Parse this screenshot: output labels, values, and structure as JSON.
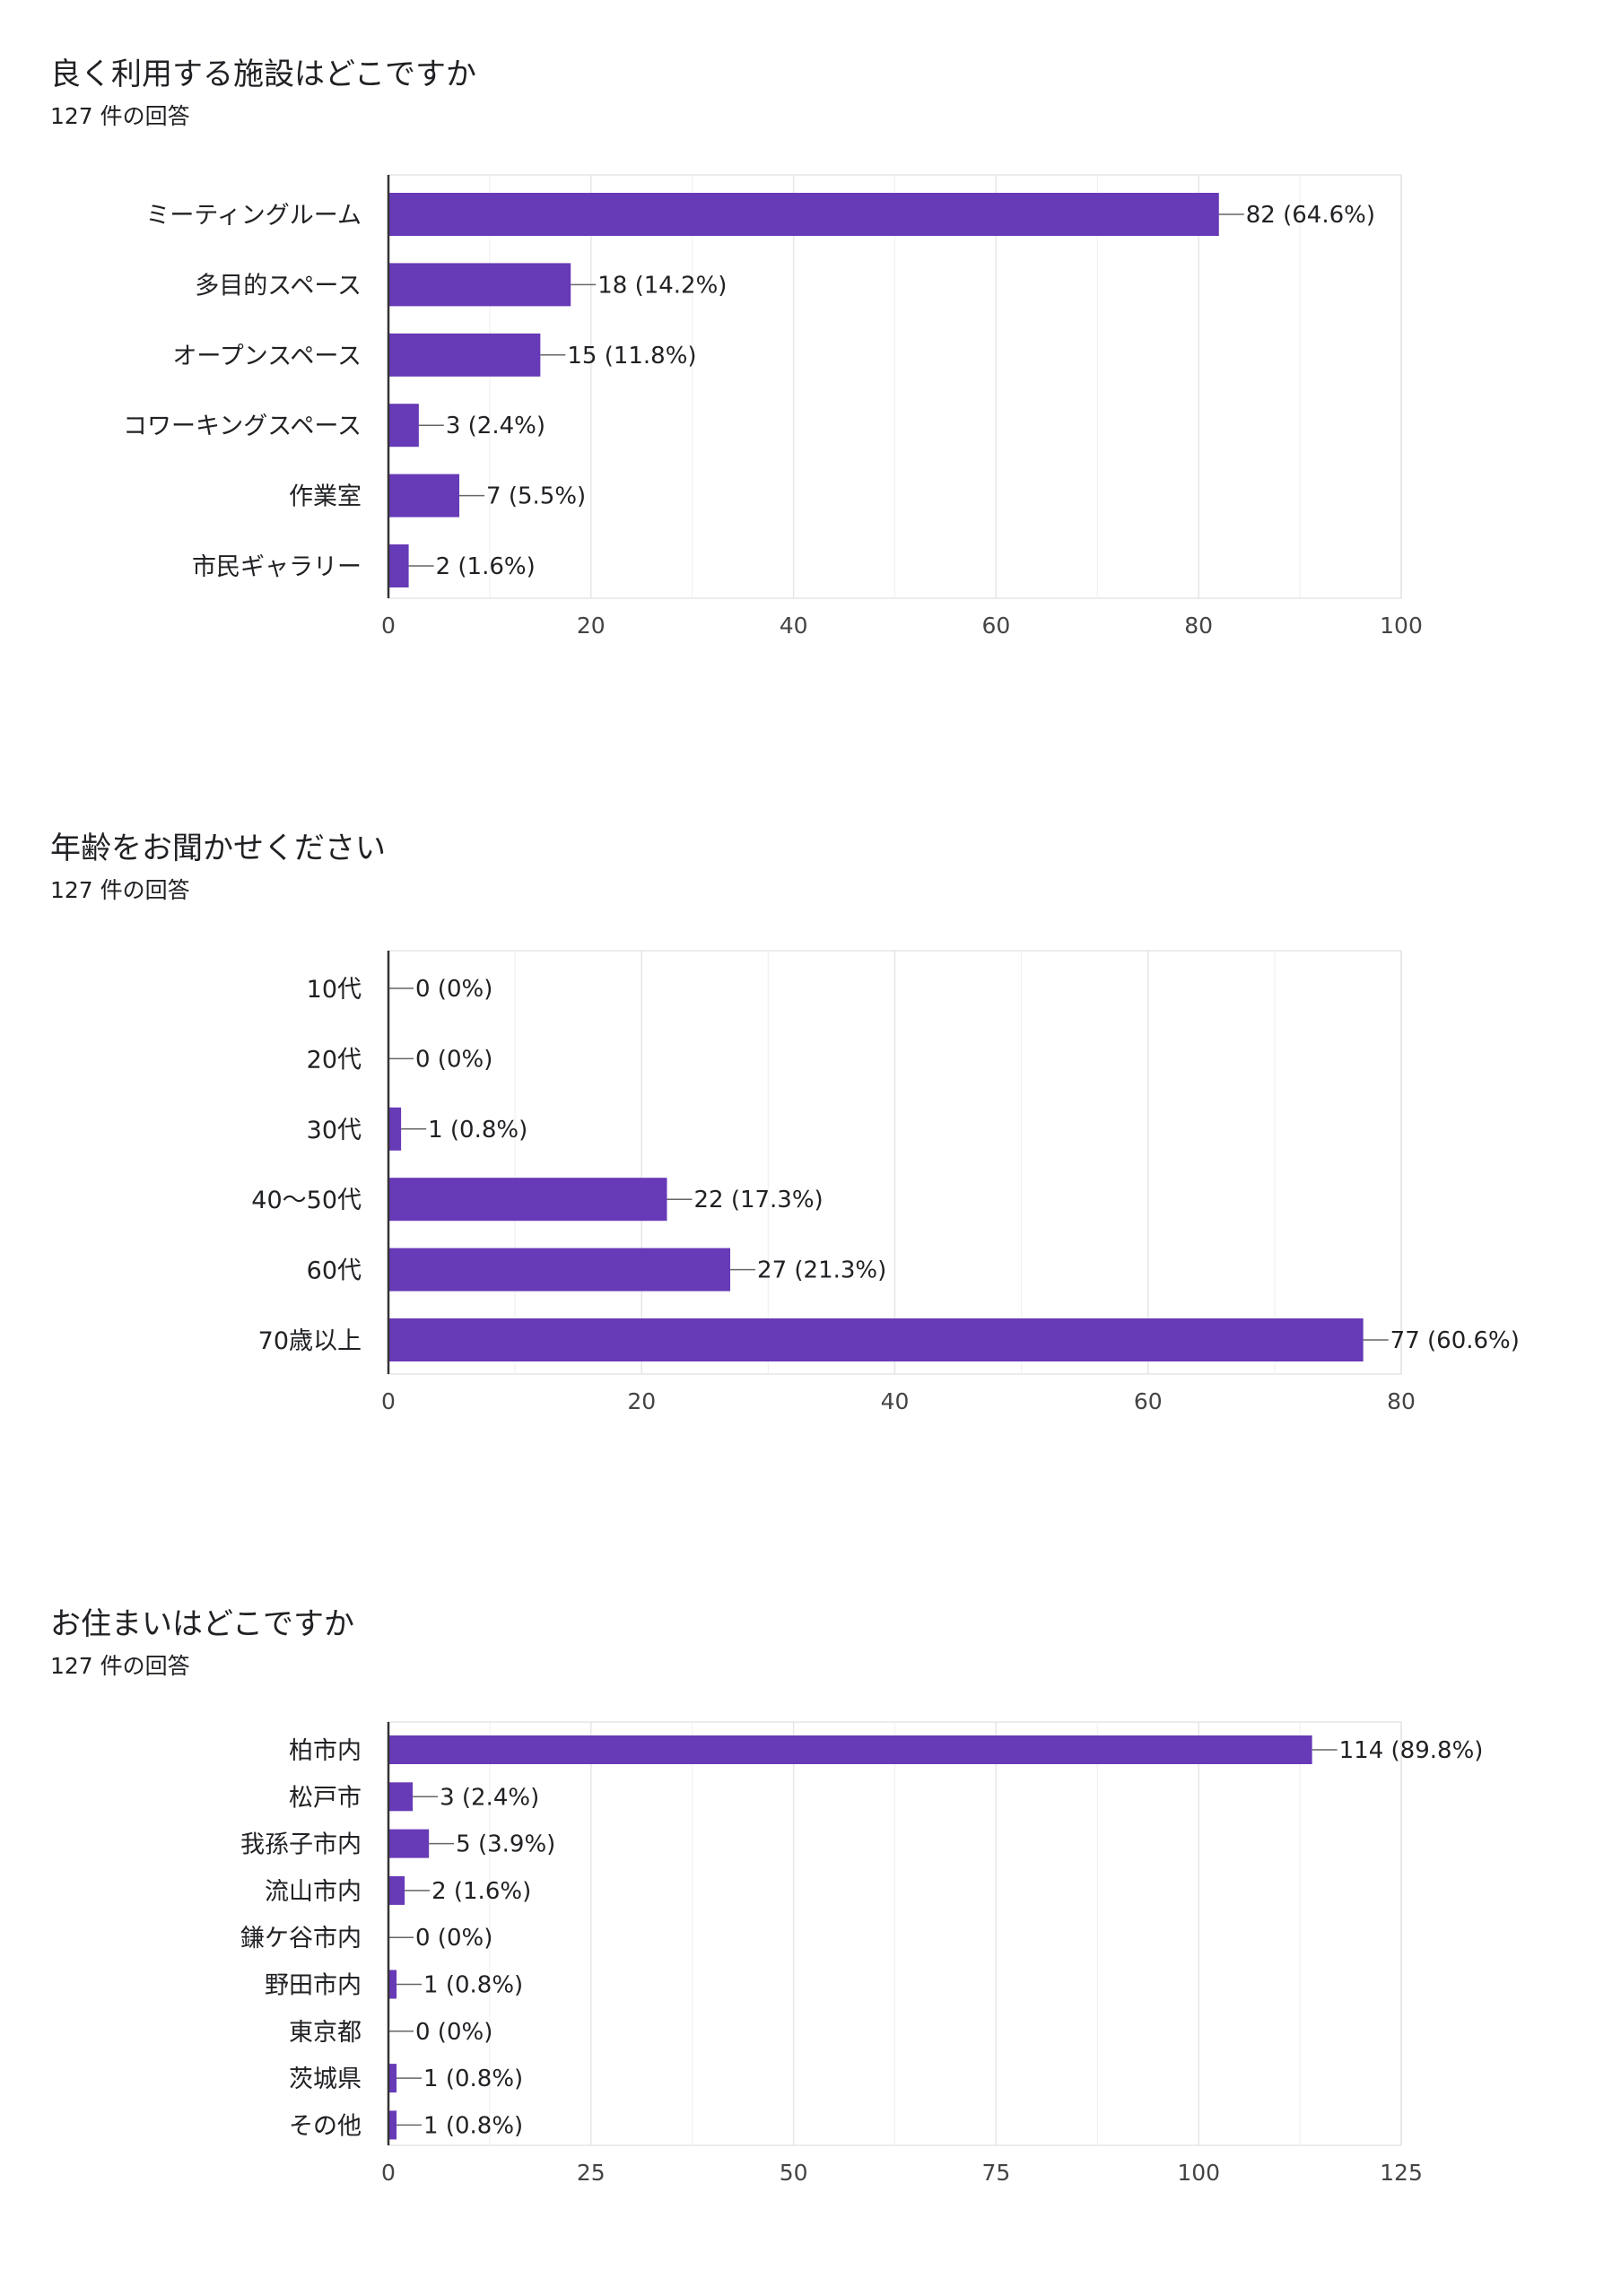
{
  "theme": {
    "bar_color": "#673ab7",
    "grid_color": "#e6e6e6",
    "axis_color": "#333333"
  },
  "charts": [
    {
      "title": "良く利用する施設はどこですか",
      "subtitle": "127 件の回答"
    },
    {
      "title": "年齢をお聞かせください",
      "subtitle": "127 件の回答"
    },
    {
      "title": "お住まいはどこですか",
      "subtitle": "127 件の回答"
    }
  ],
  "chart_data": [
    {
      "type": "bar",
      "orientation": "horizontal",
      "title": "良く利用する施設はどこですか",
      "subtitle": "127 件の回答",
      "categories": [
        "ミーティングルーム",
        "多目的スペース",
        "オープンスペース",
        "コワーキングスペース",
        "作業室",
        "市民ギャラリー"
      ],
      "values": [
        82,
        18,
        15,
        3,
        7,
        2
      ],
      "data_labels": [
        "82 (64.6%)",
        "18 (14.2%)",
        "15 (11.8%)",
        "3 (2.4%)",
        "7 (5.5%)",
        "2 (1.6%)"
      ],
      "xlim": [
        0,
        100
      ],
      "xticks": [
        0,
        20,
        40,
        60,
        80,
        100
      ],
      "grid": true
    },
    {
      "type": "bar",
      "orientation": "horizontal",
      "title": "年齢をお聞かせください",
      "subtitle": "127 件の回答",
      "categories": [
        "10代",
        "20代",
        "30代",
        "40〜50代",
        "60代",
        "70歳以上"
      ],
      "values": [
        0,
        0,
        1,
        22,
        27,
        77
      ],
      "data_labels": [
        "0 (0%)",
        "0 (0%)",
        "1 (0.8%)",
        "22 (17.3%)",
        "27 (21.3%)",
        "77 (60.6%)"
      ],
      "xlim": [
        0,
        80
      ],
      "xticks": [
        0,
        20,
        40,
        60,
        80
      ],
      "grid": true
    },
    {
      "type": "bar",
      "orientation": "horizontal",
      "title": "お住まいはどこですか",
      "subtitle": "127 件の回答",
      "categories": [
        "柏市内",
        "松戸市",
        "我孫子市内",
        "流山市内",
        "鎌ケ谷市内",
        "野田市内",
        "東京都",
        "茨城県",
        "その他"
      ],
      "values": [
        114,
        3,
        5,
        2,
        0,
        1,
        0,
        1,
        1
      ],
      "data_labels": [
        "114 (89.8%)",
        "3 (2.4%)",
        "5 (3.9%)",
        "2 (1.6%)",
        "0 (0%)",
        "1 (0.8%)",
        "0 (0%)",
        "1 (0.8%)",
        "1 (0.8%)"
      ],
      "xlim": [
        0,
        125
      ],
      "xticks": [
        0,
        25,
        50,
        75,
        100,
        125
      ],
      "grid": true
    }
  ]
}
